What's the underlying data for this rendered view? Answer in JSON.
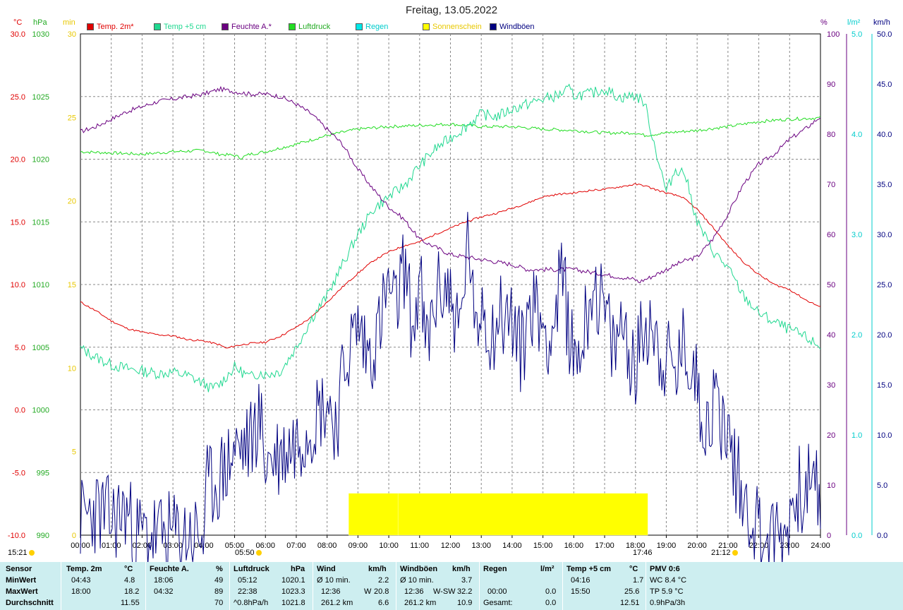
{
  "title": "Freitag, 13.05.2022",
  "colors": {
    "temp2m": "#e00000",
    "temp5cm": "#20d890",
    "feuchte": "#6a0080",
    "luftdruck": "#22dd22",
    "regen": "#00e8e8",
    "sonne": "#ffff00",
    "windboeen": "#000080",
    "grid": "#888888",
    "stats_bg": "#cdeef0"
  },
  "unit_labels": {
    "temp": "°C",
    "press": "hPa",
    "sun": "min",
    "hum": "%",
    "rain": "l/m²",
    "wind": "km/h"
  },
  "legend": [
    {
      "label": "Temp. 2m*",
      "color": "#e00000",
      "text_color": "#e00000"
    },
    {
      "label": "Temp +5 cm",
      "color": "#20d890",
      "text_color": "#20d890"
    },
    {
      "label": "Feuchte A.*",
      "color": "#6a0080",
      "text_color": "#6a0080"
    },
    {
      "label": "Luftdruck",
      "color": "#22dd22",
      "text_color": "#22dd22"
    },
    {
      "label": "Regen",
      "color": "#00e8e8",
      "text_color": "#00e8e8"
    },
    {
      "label": "Sonnenschein",
      "color": "#ffff00",
      "text_color": "#e8c800"
    },
    {
      "label": "Windböen",
      "color": "#000080",
      "text_color": "#000080"
    }
  ],
  "sun_marks": {
    "sunrise": "05:50",
    "sunset": "21:12",
    "moonrise_left": "15:21",
    "min_marker": "17:46"
  },
  "chart_data": {
    "type": "line",
    "x_unit": "hour",
    "xlim": [
      0,
      24
    ],
    "x_ticks": [
      "00:00",
      "01:00",
      "02:00",
      "03:00",
      "04:00",
      "05:00",
      "06:00",
      "07:00",
      "08:00",
      "09:00",
      "10:00",
      "11:00",
      "12:00",
      "13:00",
      "14:00",
      "15:00",
      "16:00",
      "17:00",
      "18:00",
      "19:00",
      "20:00",
      "21:00",
      "22:00",
      "23:00",
      "24:00"
    ],
    "axes": {
      "temp": {
        "lim": [
          -10,
          30
        ],
        "ticks": [
          "30.0",
          "25.0",
          "20.0",
          "15.0",
          "10.0",
          "5.0",
          "0.0",
          "-5.0",
          "-10.0"
        ]
      },
      "press": {
        "lim": [
          990,
          1030
        ],
        "ticks": [
          "1030",
          "1025",
          "1020",
          "1015",
          "1010",
          "1005",
          "1000",
          "995",
          "990"
        ]
      },
      "sun": {
        "lim": [
          0,
          30
        ],
        "ticks": [
          "30",
          "25",
          "20",
          "15",
          "10",
          "5",
          "0"
        ]
      },
      "hum": {
        "lim": [
          0,
          100
        ],
        "ticks": [
          "100",
          "90",
          "80",
          "70",
          "60",
          "50",
          "40",
          "30",
          "20",
          "10",
          "0"
        ]
      },
      "rain": {
        "lim": [
          0,
          5
        ],
        "ticks": [
          "5.0",
          "4.0",
          "3.0",
          "2.0",
          "1.0",
          "0.0"
        ]
      },
      "wind": {
        "lim": [
          0,
          50
        ],
        "ticks": [
          "50.0",
          "45.0",
          "40.0",
          "35.0",
          "30.0",
          "25.0",
          "20.0",
          "15.0",
          "10.0",
          "5.0",
          "0.0"
        ]
      }
    },
    "series": [
      {
        "name": "Temp. 2m*",
        "axis": "temp",
        "x": [
          0,
          0.5,
          1,
          1.5,
          2,
          2.5,
          3,
          3.5,
          4,
          4.5,
          4.75,
          5,
          5.5,
          6,
          6.5,
          7,
          7.5,
          8,
          8.5,
          9,
          9.5,
          10,
          10.5,
          11,
          11.5,
          12,
          12.5,
          13,
          13.5,
          14,
          14.5,
          15,
          15.5,
          16,
          16.5,
          17,
          17.5,
          18,
          18.3,
          18.5,
          19,
          19.5,
          20,
          20.5,
          21,
          21.5,
          22,
          22.5,
          23,
          23.5,
          24
        ],
        "y": [
          8.6,
          7.9,
          7.1,
          6.5,
          6.2,
          6.0,
          5.9,
          5.6,
          5.5,
          5.2,
          4.9,
          5.1,
          5.3,
          5.4,
          5.9,
          6.6,
          7.4,
          8.6,
          9.8,
          10.9,
          11.9,
          12.6,
          13.1,
          13.4,
          14.0,
          14.5,
          15.0,
          15.4,
          15.7,
          16.1,
          16.5,
          17.0,
          17.2,
          17.3,
          17.5,
          17.6,
          17.8,
          18.0,
          17.9,
          17.7,
          17.3,
          17.0,
          16.0,
          14.6,
          13.1,
          11.8,
          10.8,
          10.0,
          9.6,
          8.8,
          8.2
        ]
      },
      {
        "name": "Temp +5 cm",
        "axis": "temp",
        "x": [
          0,
          0.5,
          1,
          1.5,
          2,
          2.5,
          3,
          3.5,
          4,
          4.25,
          4.5,
          5,
          5.5,
          5.85,
          6,
          6.5,
          7,
          7.5,
          8,
          8.5,
          9,
          9.5,
          10,
          10.5,
          11,
          11.5,
          12,
          12.5,
          13,
          13.5,
          14,
          14.5,
          15,
          15.5,
          15.83,
          16,
          16.5,
          17,
          17.5,
          18,
          18.3,
          18.6,
          19,
          19.3,
          19.6,
          20,
          20.5,
          21,
          21.5,
          22,
          22.5,
          23,
          23.5,
          24
        ],
        "y": [
          4.9,
          4.2,
          3.6,
          3.3,
          3.1,
          2.9,
          3.0,
          2.7,
          2.1,
          1.7,
          2.0,
          3.4,
          2.6,
          3.0,
          2.8,
          3.1,
          5.0,
          7.3,
          9.1,
          11.6,
          14.0,
          16.0,
          17.0,
          17.9,
          19.5,
          20.8,
          21.7,
          22.6,
          23.6,
          23.4,
          24.0,
          24.4,
          24.8,
          25.1,
          25.6,
          25.1,
          25.2,
          25.6,
          24.9,
          25.1,
          24.5,
          21.3,
          17.4,
          19.2,
          18.9,
          15.0,
          12.7,
          11.3,
          9.1,
          7.7,
          7.0,
          6.4,
          5.8,
          5.0
        ]
      },
      {
        "name": "Feuchte A.*",
        "axis": "hum",
        "x": [
          0,
          0.5,
          1,
          1.5,
          2,
          2.5,
          3,
          3.5,
          4,
          4.53,
          5,
          5.5,
          6,
          6.5,
          7,
          7.5,
          8,
          8.5,
          9,
          9.5,
          10,
          10.5,
          11,
          11.5,
          12,
          12.5,
          13,
          13.5,
          14,
          14.5,
          15,
          15.5,
          16,
          16.5,
          17,
          17.5,
          18,
          18.1,
          18.5,
          19,
          19.5,
          20,
          20.5,
          21,
          21.5,
          22,
          22.5,
          23,
          23.5,
          24
        ],
        "y": [
          80.5,
          81.5,
          83.0,
          84.5,
          85.5,
          86.5,
          87.0,
          87.5,
          88.0,
          89.0,
          88.5,
          88.0,
          88.0,
          87.5,
          86.0,
          84.0,
          81.0,
          78.0,
          73.0,
          69.0,
          65.5,
          63.0,
          59.0,
          57.5,
          56.0,
          55.5,
          55.0,
          54.5,
          54.0,
          53.0,
          53.0,
          53.0,
          53.0,
          52.5,
          52.0,
          51.5,
          51.0,
          50.5,
          51.5,
          53.0,
          54.5,
          55.5,
          59.0,
          64.0,
          70.0,
          74.0,
          76.0,
          79.0,
          81.0,
          83.5
        ]
      },
      {
        "name": "Luftdruck",
        "axis": "press",
        "x": [
          0,
          1,
          2,
          3,
          4,
          4.5,
          5,
          5.2,
          5.5,
          6,
          7,
          8,
          9,
          10,
          11,
          12,
          13,
          14,
          15,
          16,
          17,
          18,
          18.3,
          19,
          20,
          21,
          22,
          23,
          24
        ],
        "y": [
          1020.6,
          1020.5,
          1020.4,
          1020.6,
          1020.7,
          1020.4,
          1020.3,
          1020.1,
          1020.4,
          1020.6,
          1021.2,
          1021.9,
          1022.4,
          1022.6,
          1022.7,
          1022.8,
          1022.6,
          1022.6,
          1022.4,
          1022.3,
          1022.1,
          1022.1,
          1021.9,
          1022.1,
          1022.3,
          1022.6,
          1023.0,
          1023.2,
          1023.3
        ]
      },
      {
        "name": "Windböen",
        "axis": "wind",
        "x": [
          0,
          0.5,
          1,
          1.5,
          1.75,
          2,
          3,
          4,
          4.1,
          4.5,
          5,
          5.5,
          5.8,
          6,
          6.5,
          7,
          7.5,
          8,
          8.3,
          8.6,
          9,
          9.3,
          9.6,
          10,
          10.2,
          10.5,
          10.8,
          11,
          11.2,
          11.5,
          11.8,
          12,
          12.3,
          12.6,
          12.8,
          13,
          13.3,
          13.6,
          14,
          14.3,
          14.6,
          15,
          15.3,
          15.6,
          16,
          16.3,
          16.6,
          17,
          17.3,
          17.6,
          18,
          18.2,
          18.5,
          18.8,
          19,
          19.3,
          19.6,
          20,
          20.3,
          20.6,
          21,
          21.3,
          21.6,
          22,
          22.2,
          22.5,
          22.8,
          23,
          23.3,
          23.6,
          24
        ],
        "y": [
          1.5,
          2.5,
          1.5,
          2.5,
          0,
          0,
          0,
          0,
          4.5,
          5.5,
          8.5,
          9.0,
          12.0,
          7.5,
          8.0,
          9.5,
          11.5,
          13.5,
          11.0,
          17.5,
          21.0,
          18.0,
          19.5,
          25.0,
          22.0,
          27.0,
          20.0,
          26.0,
          18.0,
          23.5,
          25.0,
          24.0,
          20.0,
          30.5,
          18.0,
          24.0,
          20.0,
          22.0,
          21.5,
          18.0,
          23.5,
          21.0,
          20.0,
          26.0,
          17.5,
          19.5,
          25.5,
          22.0,
          18.0,
          21.5,
          16.0,
          20.0,
          22.0,
          18.0,
          17.5,
          16.0,
          19.0,
          15.0,
          11.0,
          13.5,
          10.0,
          6.0,
          3.0,
          1.0,
          0,
          0,
          0,
          2.0,
          4.5,
          5.0,
          4.0
        ]
      }
    ],
    "sunshine": {
      "name": "Sonnenschein",
      "axis": "sun",
      "value": 2.5,
      "segments": [
        [
          8.7,
          10.3
        ],
        [
          10.3,
          18.4
        ]
      ]
    },
    "rain": {
      "name": "Regen",
      "axis": "rain",
      "total": 0.0
    }
  },
  "stats": {
    "headers": [
      {
        "label": "Sensor",
        "unit": ""
      },
      {
        "label": "Temp. 2m",
        "unit": "°C"
      },
      {
        "label": "Feuchte A.",
        "unit": "%"
      },
      {
        "label": "Luftdruck",
        "unit": "hPa"
      },
      {
        "label": "Wind",
        "unit": "km/h"
      },
      {
        "label": "Windböen",
        "unit": "km/h"
      },
      {
        "label": "Regen",
        "unit": "l/m²"
      },
      {
        "label": "Temp +5 cm",
        "unit": "°C"
      },
      {
        "label": "PMV 0:6",
        "unit": ""
      }
    ],
    "row_labels": [
      "MinWert",
      "MaxWert",
      "Durchschnitt"
    ],
    "temp2m": [
      [
        "04:43",
        "4.8"
      ],
      [
        "18:00",
        "18.2"
      ],
      [
        "",
        "11.55"
      ]
    ],
    "feuchte": [
      [
        "18:06",
        "49"
      ],
      [
        "04:32",
        "89"
      ],
      [
        "",
        "70"
      ]
    ],
    "luftdruck": [
      [
        "05:12",
        "1020.1"
      ],
      [
        "22:38",
        "1023.3"
      ],
      [
        "^0.8hPa/h",
        "1021.8"
      ]
    ],
    "wind": [
      [
        "Ø 10 min.",
        "",
        "2.2"
      ],
      [
        "12:36",
        "W",
        "20.8"
      ],
      [
        "261.2 km",
        "",
        "6.6"
      ]
    ],
    "windboeen": [
      [
        "Ø 10 min.",
        "",
        "3.7"
      ],
      [
        "12:36",
        "W-SW",
        "32.2"
      ],
      [
        "261.2 km",
        "",
        "10.9"
      ]
    ],
    "regen": [
      [
        "",
        ""
      ],
      [
        "00:00",
        "0.0"
      ],
      [
        "Gesamt:",
        "0.0"
      ]
    ],
    "temp5cm": [
      [
        "04:16",
        "1.7"
      ],
      [
        "15:50",
        "25.6"
      ],
      [
        "",
        "12.51"
      ]
    ],
    "pmv": [
      "WC 8.4 °C",
      "TP 5.9 °C",
      "0.9hPa/3h"
    ]
  }
}
